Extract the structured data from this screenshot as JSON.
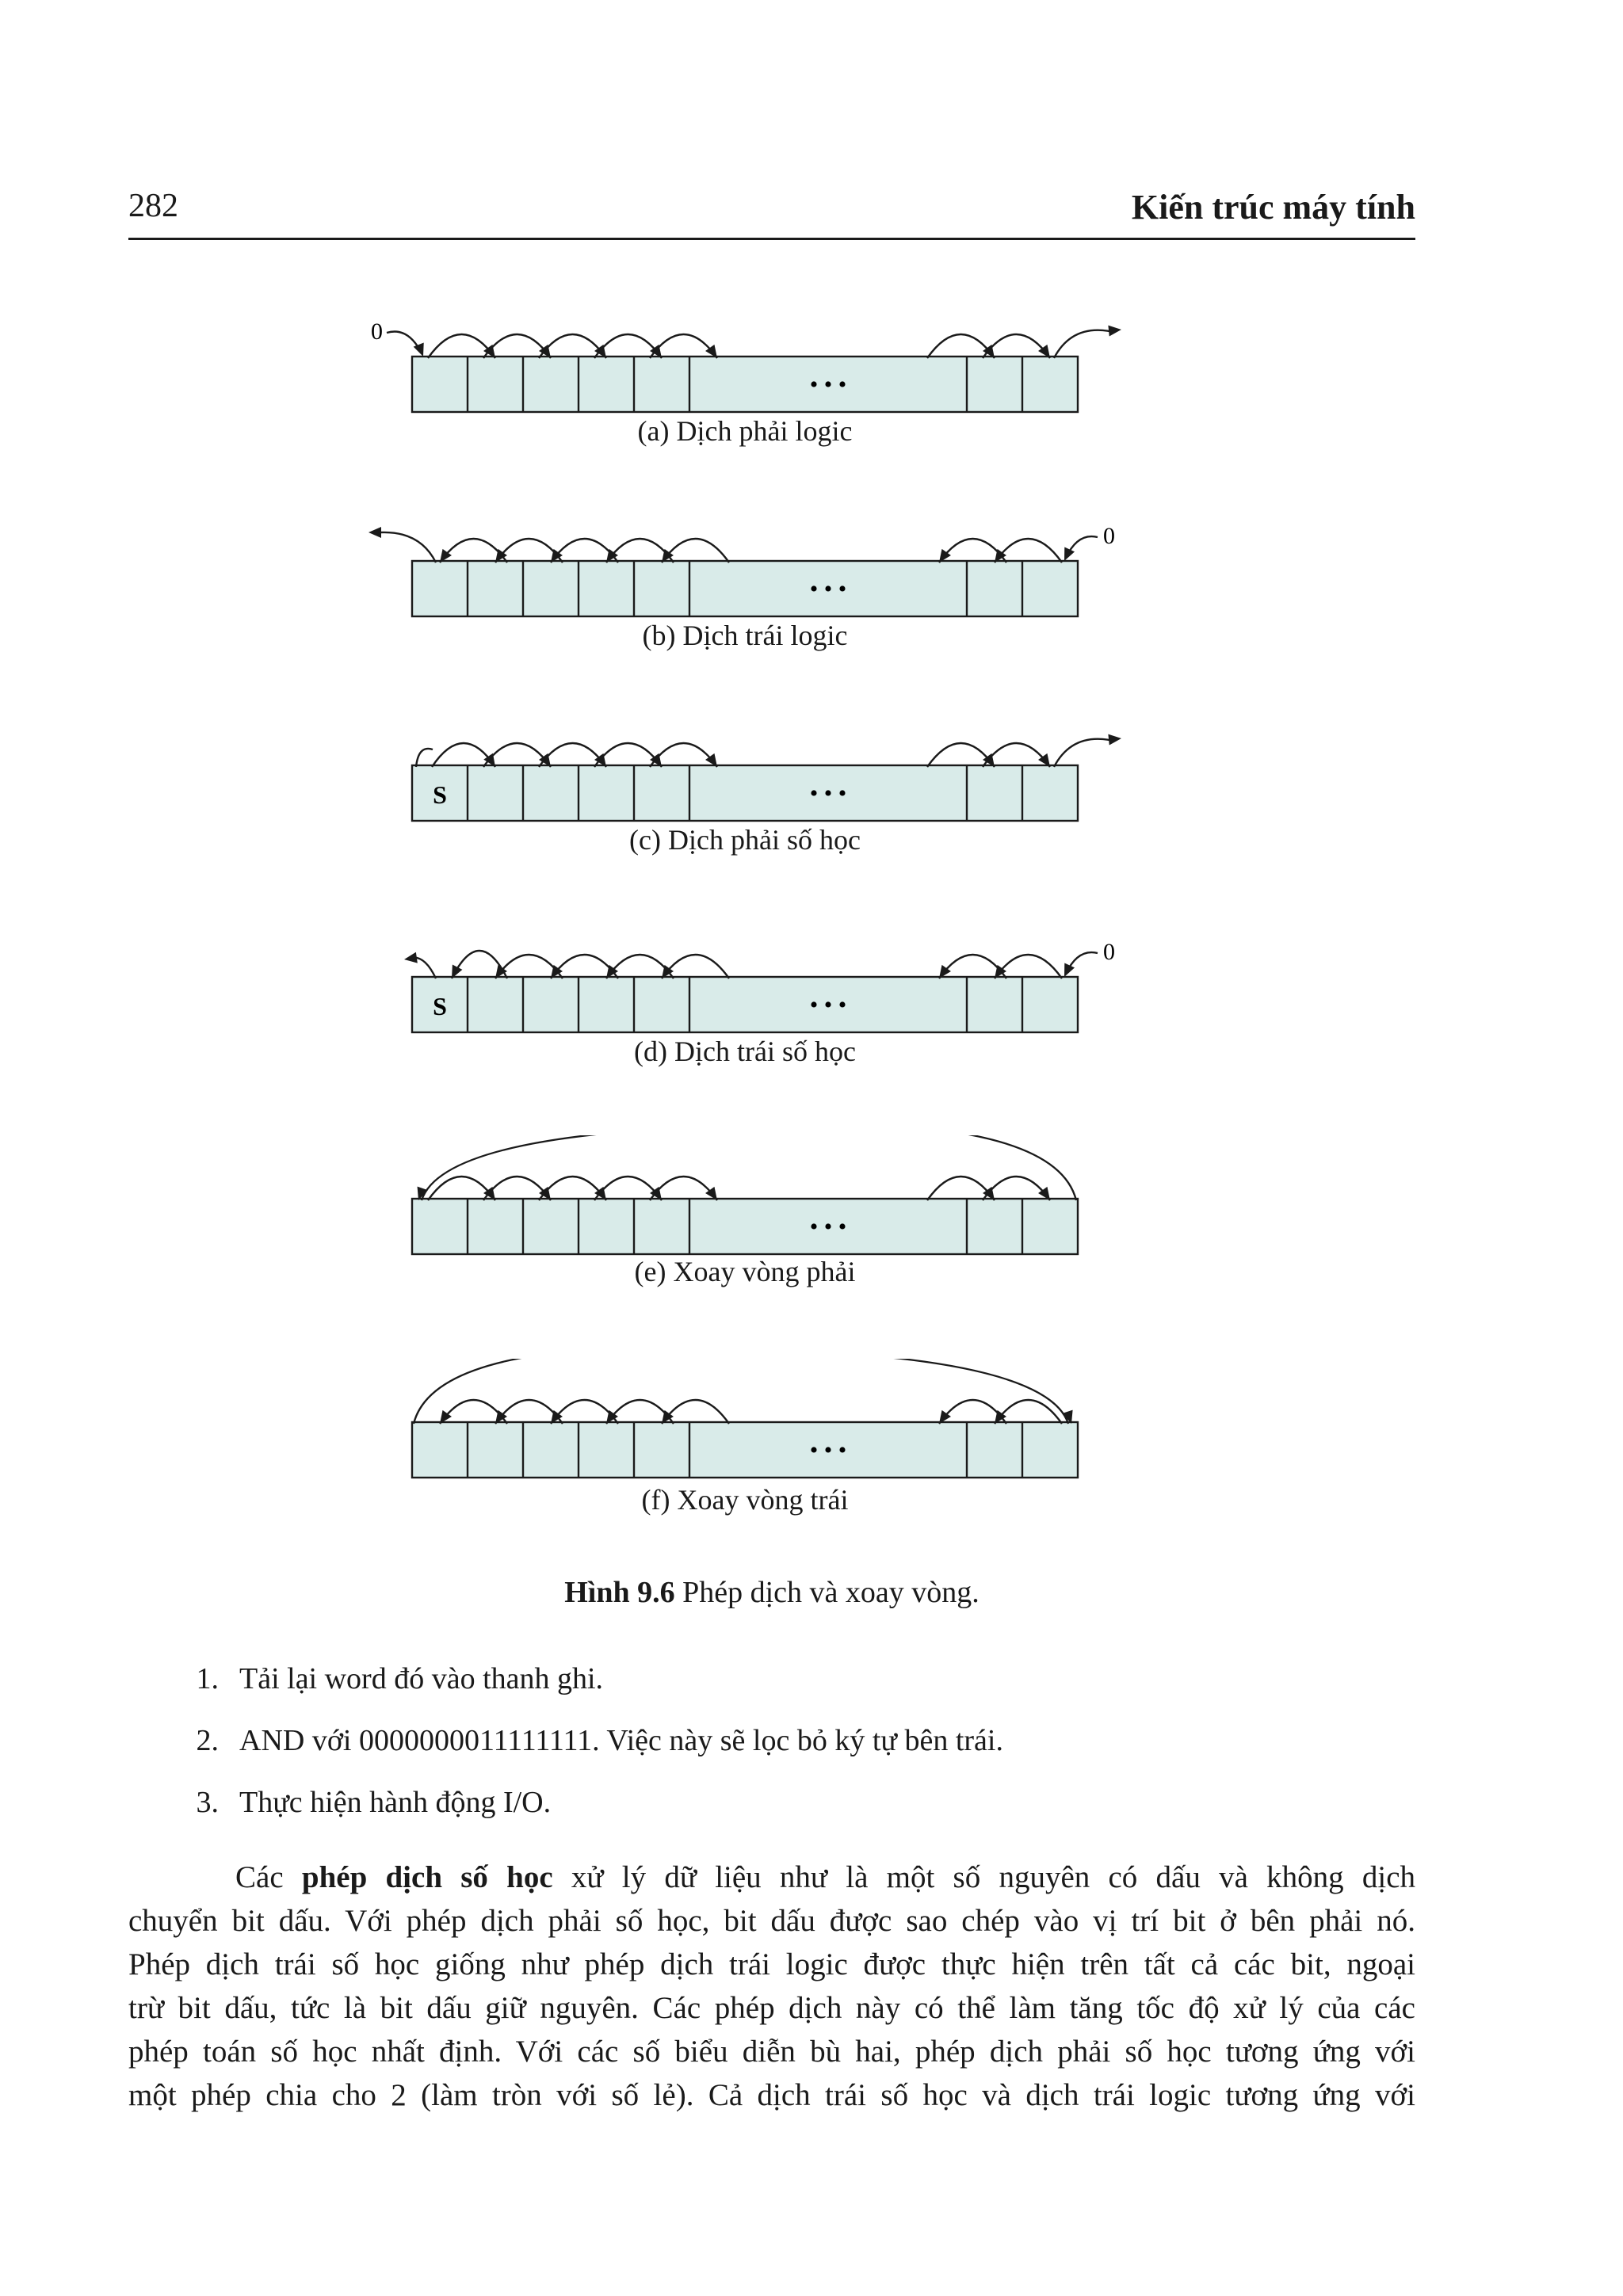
{
  "header": {
    "page_number": "282",
    "book_title": "Kiến trúc máy tính"
  },
  "figure": {
    "panels": [
      {
        "id": "a",
        "caption": "(a) Dịch phải logic",
        "direction": "right",
        "sign_label": "",
        "input_bit": "0",
        "rotate": false
      },
      {
        "id": "b",
        "caption": "(b) Dịch trái logic",
        "direction": "left",
        "sign_label": "",
        "input_bit": "0",
        "rotate": false
      },
      {
        "id": "c",
        "caption": "(c) Dịch phải số học",
        "direction": "right",
        "sign_label": "S",
        "input_bit": "",
        "rotate": false
      },
      {
        "id": "d",
        "caption": "(d) Dịch trái số học",
        "direction": "left",
        "sign_label": "S",
        "input_bit": "0",
        "rotate": false
      },
      {
        "id": "e",
        "caption": "(e) Xoay vòng phải",
        "direction": "right",
        "sign_label": "",
        "input_bit": "",
        "rotate": true
      },
      {
        "id": "f",
        "caption": "(f) Xoay vòng trái",
        "direction": "left",
        "sign_label": "",
        "input_bit": "",
        "rotate": true
      }
    ],
    "ellipsis": "• • •",
    "caption_label": "Hình 9.6",
    "caption_text": " Phép dịch và xoay vòng.",
    "cell_color": "#d9ebe9"
  },
  "steps": [
    {
      "num": "1.",
      "text": "Tải lại word đó vào thanh ghi."
    },
    {
      "num": "2.",
      "text": "AND với 0000000011111111. Việc này sẽ lọc bỏ ký tự bên trái."
    },
    {
      "num": "3.",
      "text": "Thực hiện hành động I/O."
    }
  ],
  "paragraph": {
    "line1_pre": "Các ",
    "line1_bold": "phép dịch số học",
    "line1_post": " xử lý dữ liệu như là một số nguyên có dấu và không dịch",
    "line2": "chuyển bit dấu. Với phép dịch phải số học, bit dấu được sao chép vào vị trí bit ở bên phải nó.",
    "line3": "Phép dịch trái số học giống như phép dịch trái logic được thực hiện trên tất cả các bit, ngoại",
    "line4": "trừ bit dấu, tức là bit dấu giữ nguyên. Các phép dịch này có thể làm tăng tốc độ xử lý của các",
    "line5": "phép toán số học nhất định. Với các số biểu diễn bù hai, phép dịch phải số học tương ứng với",
    "line6": "một phép chia cho 2 (làm tròn với số lẻ). Cả dịch trái số học và dịch trái logic tương ứng với"
  }
}
